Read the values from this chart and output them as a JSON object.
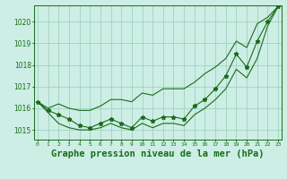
{
  "title": "Graphe pression niveau de la mer (hPa)",
  "x_labels": [
    "0",
    "1",
    "2",
    "3",
    "4",
    "5",
    "6",
    "7",
    "8",
    "9",
    "10",
    "11",
    "12",
    "13",
    "14",
    "15",
    "16",
    "17",
    "18",
    "19",
    "20",
    "21",
    "22",
    "23"
  ],
  "x_values": [
    0,
    1,
    2,
    3,
    4,
    5,
    6,
    7,
    8,
    9,
    10,
    11,
    12,
    13,
    14,
    15,
    16,
    17,
    18,
    19,
    20,
    21,
    22,
    23
  ],
  "main_line": [
    1016.3,
    1015.9,
    1015.7,
    1015.5,
    1015.2,
    1015.1,
    1015.3,
    1015.5,
    1015.3,
    1015.1,
    1015.6,
    1015.4,
    1015.6,
    1015.6,
    1015.5,
    1016.1,
    1016.4,
    1016.9,
    1017.5,
    1018.5,
    1017.9,
    1019.1,
    1020.0,
    1020.7
  ],
  "upper_line": [
    1016.3,
    1016.0,
    1016.2,
    1016.0,
    1015.9,
    1015.9,
    1016.1,
    1016.4,
    1016.4,
    1016.3,
    1016.7,
    1016.6,
    1016.9,
    1016.9,
    1016.9,
    1017.2,
    1017.6,
    1017.9,
    1018.3,
    1019.1,
    1018.8,
    1019.9,
    1020.2,
    1020.7
  ],
  "lower_line": [
    1016.3,
    1015.8,
    1015.3,
    1015.1,
    1015.0,
    1015.0,
    1015.1,
    1015.3,
    1015.1,
    1015.0,
    1015.3,
    1015.1,
    1015.3,
    1015.3,
    1015.2,
    1015.7,
    1016.0,
    1016.4,
    1016.9,
    1017.8,
    1017.4,
    1018.3,
    1019.8,
    1020.7
  ],
  "ylim": [
    1014.55,
    1020.75
  ],
  "yticks": [
    1015,
    1016,
    1017,
    1018,
    1019,
    1020
  ],
  "line_color": "#1a6b1a",
  "bg_color": "#cceee4",
  "grid_color": "#99ccbb",
  "title_color": "#1a6b1a",
  "title_fontsize": 7.5,
  "marker": "*",
  "marker_size": 3.5
}
